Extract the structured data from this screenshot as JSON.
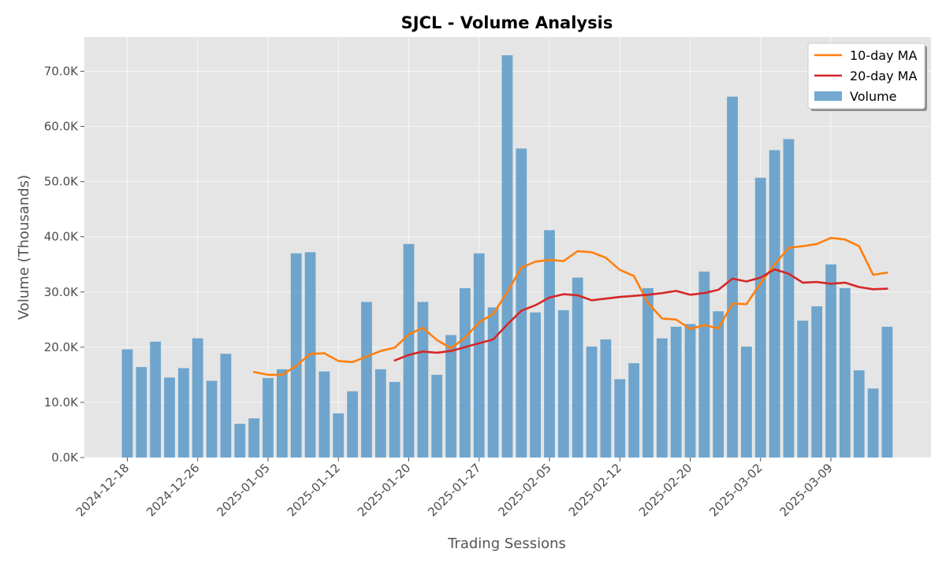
{
  "chart_data": {
    "type": "bar",
    "title": "SJCL - Volume Analysis",
    "xlabel": "Trading Sessions",
    "ylabel": "Volume (Thousands)",
    "ylim": [
      0,
      76.2
    ],
    "y_ticks": [
      0,
      10,
      20,
      30,
      40,
      50,
      60,
      70
    ],
    "y_tick_suffix": "K",
    "grid": true,
    "legend_position": "top-right",
    "x_tick_labels": [
      {
        "index": 0,
        "label": "2024-12-18"
      },
      {
        "index": 5,
        "label": "2024-12-26"
      },
      {
        "index": 10,
        "label": "2025-01-05"
      },
      {
        "index": 15,
        "label": "2025-01-12"
      },
      {
        "index": 20,
        "label": "2025-01-20"
      },
      {
        "index": 25,
        "label": "2025-01-27"
      },
      {
        "index": 30,
        "label": "2025-02-05"
      },
      {
        "index": 35,
        "label": "2025-02-12"
      },
      {
        "index": 40,
        "label": "2025-02-20"
      },
      {
        "index": 45,
        "label": "2025-03-02"
      },
      {
        "index": 50,
        "label": "2025-03-09"
      }
    ],
    "series": [
      {
        "name": "Volume",
        "kind": "bar",
        "color": "#5b9ac8",
        "values": [
          19.6,
          16.4,
          21.0,
          14.5,
          16.2,
          21.6,
          13.9,
          18.8,
          6.1,
          7.1,
          14.4,
          16.0,
          37.0,
          37.2,
          15.6,
          8.0,
          12.0,
          28.2,
          16.0,
          13.7,
          38.7,
          28.2,
          15.0,
          22.2,
          30.7,
          37.0,
          27.2,
          72.9,
          56.0,
          26.3,
          41.2,
          26.7,
          32.6,
          20.1,
          21.4,
          14.2,
          17.1,
          30.7,
          21.6,
          23.7,
          24.2,
          33.7,
          26.5,
          65.4,
          20.1,
          50.7,
          55.7,
          57.7,
          24.8,
          27.4,
          35.0,
          30.7,
          15.8,
          12.5,
          23.7
        ]
      },
      {
        "name": "10-day MA",
        "kind": "line",
        "color": "#ff7f0e",
        "values": [
          null,
          null,
          null,
          null,
          null,
          null,
          null,
          null,
          null,
          15.5,
          15.0,
          15.0,
          16.6,
          18.8,
          18.9,
          17.5,
          17.3,
          18.3,
          19.3,
          19.9,
          22.3,
          23.5,
          21.3,
          19.8,
          21.7,
          24.5,
          26.0,
          30.0,
          34.4,
          35.5,
          35.8,
          35.6,
          37.4,
          37.2,
          36.2,
          34.0,
          32.9,
          28.0,
          25.2,
          25.0,
          23.3,
          24.0,
          23.4,
          27.9,
          27.8,
          31.6,
          35.0,
          38.0,
          38.3,
          38.7,
          39.8,
          39.5,
          38.3,
          33.1,
          33.5
        ]
      },
      {
        "name": "20-day MA",
        "kind": "line",
        "color": "#d62728",
        "values": [
          null,
          null,
          null,
          null,
          null,
          null,
          null,
          null,
          null,
          null,
          null,
          null,
          null,
          null,
          null,
          null,
          null,
          null,
          null,
          17.6,
          18.6,
          19.2,
          19.0,
          19.3,
          20.0,
          20.7,
          21.4,
          24.1,
          26.6,
          27.6,
          29.0,
          29.6,
          29.4,
          28.5,
          28.8,
          29.1,
          29.3,
          29.5,
          29.8,
          30.2,
          29.5,
          29.8,
          30.4,
          32.4,
          31.9,
          32.6,
          34.1,
          33.3,
          31.7,
          31.8,
          31.5,
          31.7,
          30.9,
          30.5,
          30.6
        ]
      }
    ]
  }
}
